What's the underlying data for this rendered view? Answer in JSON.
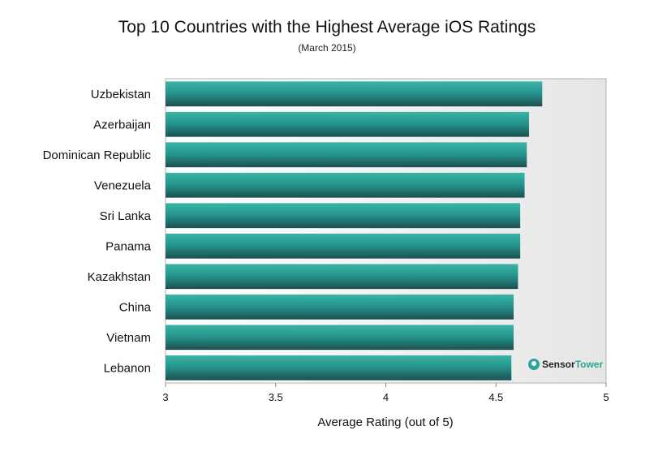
{
  "chart_data": {
    "type": "bar",
    "orientation": "horizontal",
    "title": "Top 10 Countries with the Highest Average iOS Ratings",
    "subtitle": "(March 2015)",
    "categories": [
      "Uzbekistan",
      "Azerbaijan",
      "Dominican Republic",
      "Venezuela",
      "Sri Lanka",
      "Panama",
      "Kazakhstan",
      "China",
      "Vietnam",
      "Lebanon"
    ],
    "values": [
      4.71,
      4.65,
      4.64,
      4.63,
      4.61,
      4.61,
      4.6,
      4.58,
      4.58,
      4.57
    ],
    "xlabel": "Average Rating (out of 5)",
    "ylabel": "",
    "xlim": [
      3,
      5
    ],
    "xticks": [
      "3",
      "3.5",
      "4",
      "4.5",
      "5"
    ],
    "tick_values": [
      3,
      3.5,
      4,
      4.5,
      5
    ],
    "grid": false,
    "bar_color": "#2a9d8f"
  },
  "branding": {
    "name_part1": "Sensor",
    "name_part2": "Tower",
    "accent": "#2aa597"
  }
}
